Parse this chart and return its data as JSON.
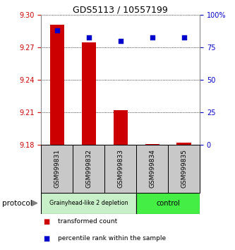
{
  "title": "GDS5113 / 10557199",
  "samples": [
    "GSM999831",
    "GSM999832",
    "GSM999833",
    "GSM999834",
    "GSM999835"
  ],
  "bar_values": [
    9.291,
    9.275,
    9.212,
    9.181,
    9.182
  ],
  "bar_baseline": 9.18,
  "percentile_values": [
    88,
    83,
    80,
    83,
    83
  ],
  "ylim_left": [
    9.18,
    9.3
  ],
  "ylim_right": [
    0,
    100
  ],
  "yticks_left": [
    9.18,
    9.21,
    9.24,
    9.27,
    9.3
  ],
  "yticks_right": [
    0,
    25,
    50,
    75,
    100
  ],
  "ytick_labels_right": [
    "0",
    "25",
    "50",
    "75",
    "100%"
  ],
  "bar_color": "#cc0000",
  "dot_color": "#0000cc",
  "group1_label": "Grainyhead-like 2 depletion",
  "group2_label": "control",
  "group1_color": "#c8f0c8",
  "group2_color": "#44ee44",
  "protocol_label": "protocol",
  "legend_bar_label": "transformed count",
  "legend_dot_label": "percentile rank within the sample",
  "bar_width": 0.45,
  "left_color": "#cc0000",
  "right_color": "#0000cc",
  "sample_box_color": "#c8c8c8",
  "title_fontsize": 9
}
